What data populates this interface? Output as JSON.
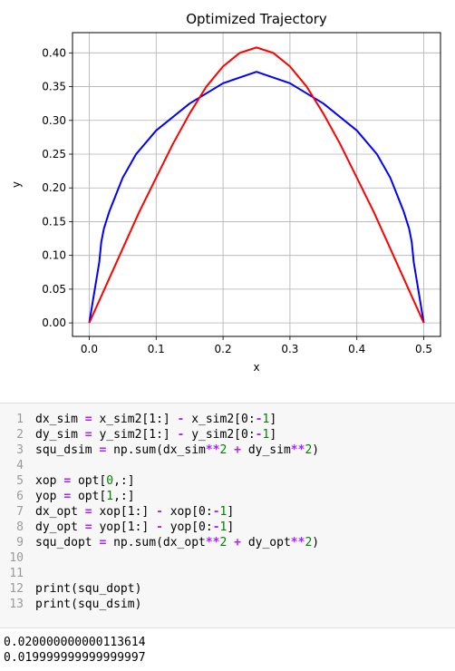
{
  "chart_data": {
    "type": "line",
    "title": "Optimized Trajectory",
    "xlabel": "x",
    "ylabel": "y",
    "xlim": [
      -0.025,
      0.525
    ],
    "ylim": [
      -0.02,
      0.43
    ],
    "xticks": [
      "0.0",
      "0.1",
      "0.2",
      "0.3",
      "0.4",
      "0.5"
    ],
    "yticks": [
      "0.00",
      "0.05",
      "0.10",
      "0.15",
      "0.20",
      "0.25",
      "0.30",
      "0.35",
      "0.40"
    ],
    "grid": true,
    "series": [
      {
        "color": "#0000ff",
        "points": [
          [
            0,
            0
          ],
          [
            0.005,
            0.03
          ],
          [
            0.01,
            0.06
          ],
          [
            0.015,
            0.09
          ],
          [
            0.018,
            0.12
          ],
          [
            0.022,
            0.14
          ],
          [
            0.03,
            0.165
          ],
          [
            0.04,
            0.19
          ],
          [
            0.05,
            0.215
          ],
          [
            0.07,
            0.25
          ],
          [
            0.1,
            0.285
          ],
          [
            0.15,
            0.325
          ],
          [
            0.2,
            0.355
          ],
          [
            0.25,
            0.372
          ],
          [
            0.3,
            0.355
          ],
          [
            0.35,
            0.325
          ],
          [
            0.4,
            0.285
          ],
          [
            0.43,
            0.25
          ],
          [
            0.45,
            0.215
          ],
          [
            0.46,
            0.19
          ],
          [
            0.47,
            0.165
          ],
          [
            0.478,
            0.14
          ],
          [
            0.482,
            0.12
          ],
          [
            0.485,
            0.09
          ],
          [
            0.49,
            0.06
          ],
          [
            0.495,
            0.03
          ],
          [
            0.5,
            0
          ]
        ]
      },
      {
        "color": "#ff0000",
        "points": [
          [
            0,
            0
          ],
          [
            0.025,
            0.055
          ],
          [
            0.05,
            0.11
          ],
          [
            0.075,
            0.165
          ],
          [
            0.1,
            0.215
          ],
          [
            0.125,
            0.265
          ],
          [
            0.15,
            0.31
          ],
          [
            0.175,
            0.35
          ],
          [
            0.2,
            0.38
          ],
          [
            0.225,
            0.4
          ],
          [
            0.25,
            0.408
          ],
          [
            0.275,
            0.4
          ],
          [
            0.3,
            0.38
          ],
          [
            0.325,
            0.35
          ],
          [
            0.35,
            0.31
          ],
          [
            0.375,
            0.265
          ],
          [
            0.4,
            0.215
          ],
          [
            0.425,
            0.165
          ],
          [
            0.45,
            0.11
          ],
          [
            0.475,
            0.055
          ],
          [
            0.5,
            0
          ]
        ]
      }
    ]
  },
  "code": {
    "lines": [
      {
        "n": "1",
        "tokens": [
          [
            "t",
            "dx_sim "
          ],
          [
            "o",
            "="
          ],
          [
            "t",
            " x_sim2[1:] "
          ],
          [
            "o",
            "-"
          ],
          [
            "t",
            " x_sim2[0:"
          ],
          [
            "o",
            "-"
          ],
          [
            "n",
            "1"
          ],
          [
            "t",
            "]"
          ]
        ]
      },
      {
        "n": "2",
        "tokens": [
          [
            "t",
            "dy_sim "
          ],
          [
            "o",
            "="
          ],
          [
            "t",
            " y_sim2[1:] "
          ],
          [
            "o",
            "-"
          ],
          [
            "t",
            " y_sim2[0:"
          ],
          [
            "o",
            "-"
          ],
          [
            "n",
            "1"
          ],
          [
            "t",
            "]"
          ]
        ]
      },
      {
        "n": "3",
        "tokens": [
          [
            "t",
            "squ_dsim "
          ],
          [
            "o",
            "="
          ],
          [
            "t",
            " np.sum(dx_sim"
          ],
          [
            "o",
            "**"
          ],
          [
            "n",
            "2"
          ],
          [
            "t",
            " "
          ],
          [
            "o",
            "+"
          ],
          [
            "t",
            " dy_sim"
          ],
          [
            "o",
            "**"
          ],
          [
            "n",
            "2"
          ],
          [
            "t",
            ")"
          ]
        ]
      },
      {
        "n": "4",
        "tokens": []
      },
      {
        "n": "5",
        "tokens": [
          [
            "t",
            "xop "
          ],
          [
            "o",
            "="
          ],
          [
            "t",
            " opt["
          ],
          [
            "n",
            "0"
          ],
          [
            "t",
            ",:]"
          ]
        ]
      },
      {
        "n": "6",
        "tokens": [
          [
            "t",
            "yop "
          ],
          [
            "o",
            "="
          ],
          [
            "t",
            " opt["
          ],
          [
            "n",
            "1"
          ],
          [
            "t",
            ",:]"
          ]
        ]
      },
      {
        "n": "7",
        "tokens": [
          [
            "t",
            "dx_opt "
          ],
          [
            "o",
            "="
          ],
          [
            "t",
            " xop[1:] "
          ],
          [
            "o",
            "-"
          ],
          [
            "t",
            " xop[0:"
          ],
          [
            "o",
            "-"
          ],
          [
            "n",
            "1"
          ],
          [
            "t",
            "]"
          ]
        ]
      },
      {
        "n": "8",
        "tokens": [
          [
            "t",
            "dy_opt "
          ],
          [
            "o",
            "="
          ],
          [
            "t",
            " yop[1:] "
          ],
          [
            "o",
            "-"
          ],
          [
            "t",
            " yop[0:"
          ],
          [
            "o",
            "-"
          ],
          [
            "n",
            "1"
          ],
          [
            "t",
            "]"
          ]
        ]
      },
      {
        "n": "9",
        "tokens": [
          [
            "t",
            "squ_dopt "
          ],
          [
            "o",
            "="
          ],
          [
            "t",
            " np.sum(dx_opt"
          ],
          [
            "o",
            "**"
          ],
          [
            "n",
            "2"
          ],
          [
            "t",
            " "
          ],
          [
            "o",
            "+"
          ],
          [
            "t",
            " dy_opt"
          ],
          [
            "o",
            "**"
          ],
          [
            "n",
            "2"
          ],
          [
            "t",
            ")"
          ]
        ]
      },
      {
        "n": "10",
        "tokens": []
      },
      {
        "n": "11",
        "tokens": []
      },
      {
        "n": "12",
        "tokens": [
          [
            "t",
            "print(squ_dopt)"
          ]
        ]
      },
      {
        "n": "13",
        "tokens": [
          [
            "t",
            "print(squ_dsim)"
          ]
        ]
      }
    ]
  },
  "output": {
    "line1": "0.020000000000113614",
    "line2": "0.019999999999999997"
  }
}
